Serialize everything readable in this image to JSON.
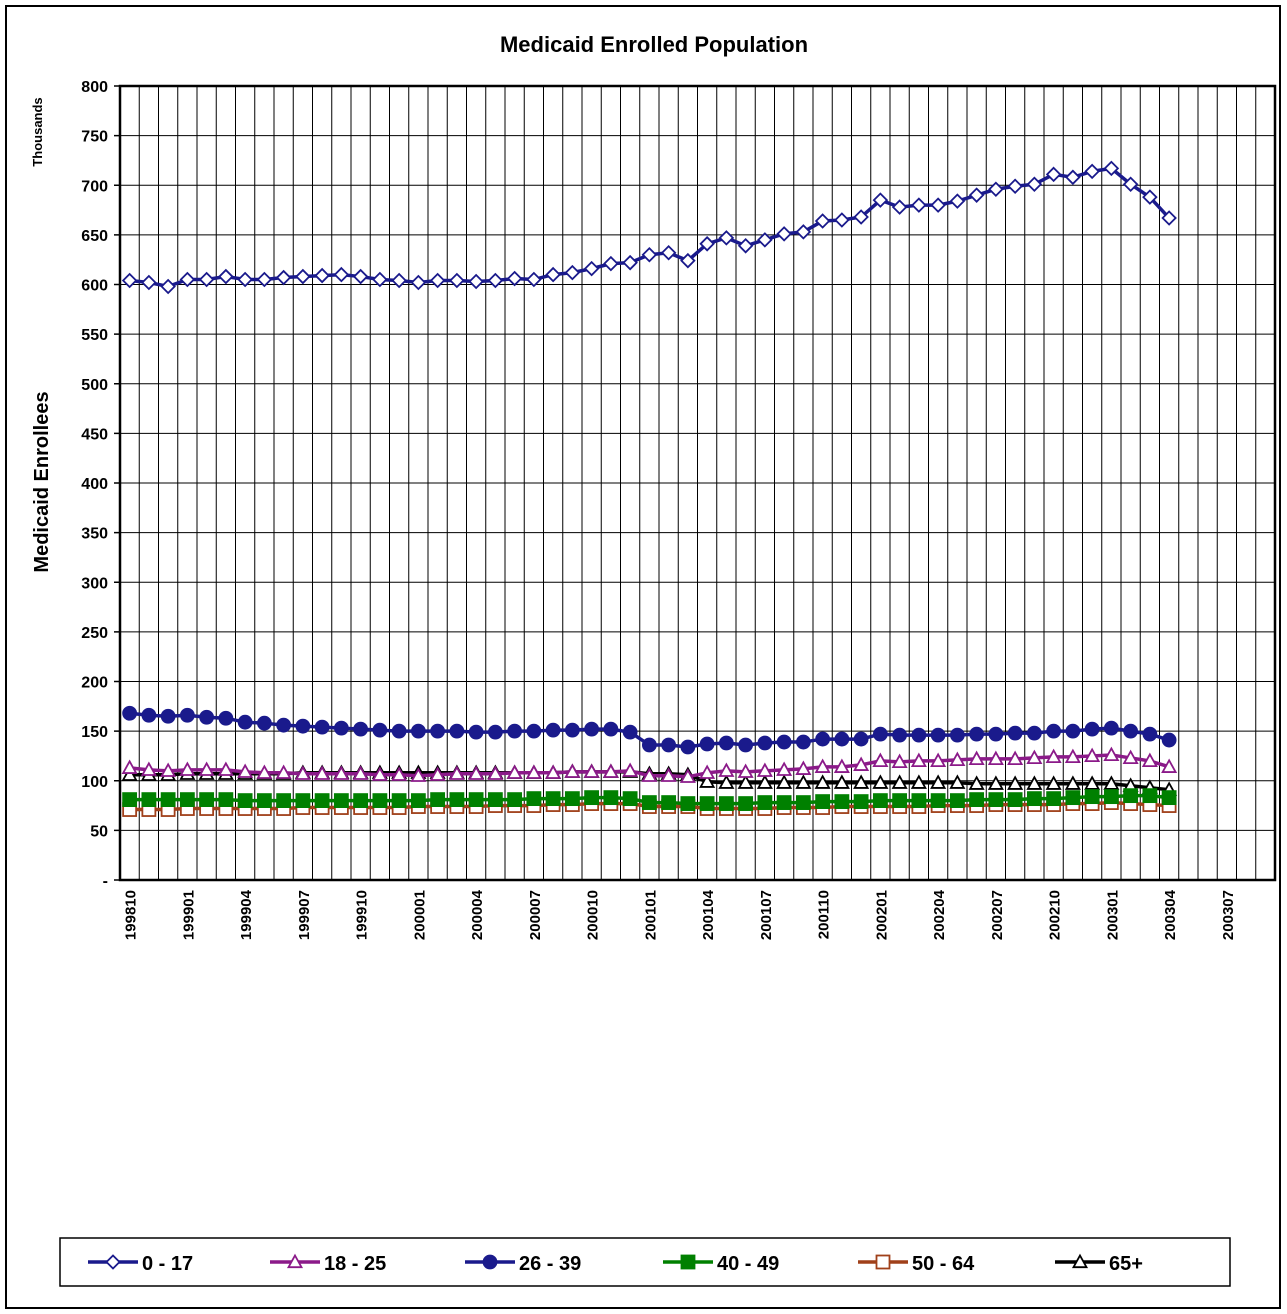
{
  "chart_data": {
    "type": "line",
    "title": "Medicaid Enrolled Population",
    "y_label": "Medicaid Enrollees",
    "y_unit": "Thousands",
    "categories": [
      "199810",
      null,
      null,
      "199901",
      null,
      null,
      "199904",
      null,
      null,
      "199907",
      null,
      null,
      "199910",
      null,
      null,
      "200001",
      null,
      null,
      "200004",
      null,
      null,
      "200007",
      null,
      null,
      "200010",
      null,
      null,
      "200101",
      null,
      null,
      "200104",
      null,
      null,
      "200107",
      null,
      null,
      "200110",
      null,
      null,
      "200201",
      null,
      null,
      "200204",
      null,
      null,
      "200207",
      null,
      null,
      "200210",
      null,
      null,
      "200301",
      null,
      null,
      "200304",
      null,
      null,
      "200307",
      null,
      null
    ],
    "ylim": [
      0,
      800
    ],
    "yticks": [
      {
        "value": 0,
        "label": "-"
      },
      50,
      100,
      150,
      200,
      250,
      300,
      350,
      400,
      450,
      500,
      550,
      600,
      650,
      700,
      750,
      800
    ],
    "grid": true,
    "legend": "bottom",
    "series": [
      {
        "name": "0 - 17",
        "color": "#1a1a8c",
        "marker": "diamond-open",
        "values": [
          604,
          602,
          598,
          605,
          605,
          608,
          605,
          605,
          607,
          608,
          609,
          610,
          608,
          605,
          604,
          602,
          604,
          604,
          603,
          604,
          606,
          605,
          610,
          612,
          616,
          621,
          622,
          630,
          632,
          624,
          641,
          647,
          639,
          645,
          651,
          653,
          664,
          665,
          668,
          685,
          678,
          680,
          680,
          684,
          690,
          696,
          699,
          701,
          711,
          708,
          714,
          717,
          701,
          688,
          667,
          null,
          null,
          null,
          null,
          null
        ]
      },
      {
        "name": "18 - 25",
        "color": "#8b1a89",
        "marker": "triangle-open",
        "values": [
          113,
          111,
          110,
          111,
          111,
          111,
          109,
          108,
          108,
          107,
          107,
          107,
          107,
          106,
          106,
          105,
          106,
          107,
          107,
          107,
          108,
          108,
          108,
          109,
          109,
          109,
          110,
          105,
          105,
          104,
          108,
          110,
          109,
          110,
          111,
          112,
          114,
          114,
          116,
          120,
          119,
          120,
          120,
          121,
          122,
          122,
          122,
          123,
          124,
          124,
          125,
          126,
          123,
          120,
          114,
          null,
          null,
          null,
          null,
          null
        ]
      },
      {
        "name": "26 - 39",
        "color": "#1a1a8c",
        "marker": "circle-filled",
        "values": [
          168,
          166,
          165,
          166,
          164,
          163,
          159,
          158,
          156,
          155,
          154,
          153,
          152,
          151,
          150,
          150,
          150,
          150,
          149,
          149,
          150,
          150,
          151,
          151,
          152,
          152,
          149,
          136,
          136,
          134,
          137,
          138,
          136,
          138,
          139,
          139,
          142,
          142,
          142,
          147,
          146,
          146,
          146,
          146,
          147,
          147,
          148,
          148,
          150,
          150,
          152,
          153,
          150,
          147,
          141,
          null,
          null,
          null,
          null,
          null
        ]
      },
      {
        "name": "40 - 49",
        "color": "#008000",
        "marker": "square-filled",
        "values": [
          81,
          81,
          81,
          81,
          81,
          81,
          80,
          80,
          80,
          80,
          80,
          80,
          80,
          80,
          80,
          80,
          81,
          81,
          81,
          81,
          81,
          82,
          82,
          82,
          83,
          83,
          82,
          78,
          78,
          77,
          77,
          77,
          77,
          78,
          78,
          78,
          79,
          79,
          79,
          80,
          80,
          80,
          80,
          80,
          81,
          81,
          81,
          82,
          82,
          83,
          84,
          84,
          85,
          85,
          83,
          null,
          null,
          null,
          null,
          null
        ]
      },
      {
        "name": "50 - 64",
        "color": "#a0401a",
        "marker": "square-open",
        "values": [
          71,
          71,
          71,
          72,
          72,
          72,
          72,
          72,
          72,
          73,
          73,
          73,
          73,
          73,
          73,
          74,
          74,
          74,
          74,
          75,
          75,
          75,
          76,
          76,
          77,
          77,
          77,
          74,
          74,
          74,
          72,
          72,
          72,
          72,
          73,
          73,
          73,
          74,
          74,
          74,
          74,
          74,
          75,
          75,
          75,
          76,
          76,
          76,
          76,
          77,
          77,
          78,
          77,
          76,
          75,
          null,
          null,
          null,
          null,
          null
        ]
      },
      {
        "name": "65+",
        "color": "#000000",
        "marker": "triangle-open",
        "values": [
          106,
          106,
          106,
          107,
          107,
          107,
          107,
          107,
          107,
          108,
          108,
          108,
          108,
          108,
          108,
          108,
          108,
          108,
          108,
          108,
          108,
          108,
          108,
          109,
          109,
          109,
          109,
          107,
          107,
          106,
          99,
          98,
          98,
          98,
          98,
          98,
          98,
          98,
          98,
          98,
          98,
          98,
          98,
          98,
          97,
          97,
          97,
          97,
          97,
          97,
          97,
          97,
          95,
          93,
          91,
          null,
          null,
          null,
          null,
          null
        ]
      }
    ]
  }
}
